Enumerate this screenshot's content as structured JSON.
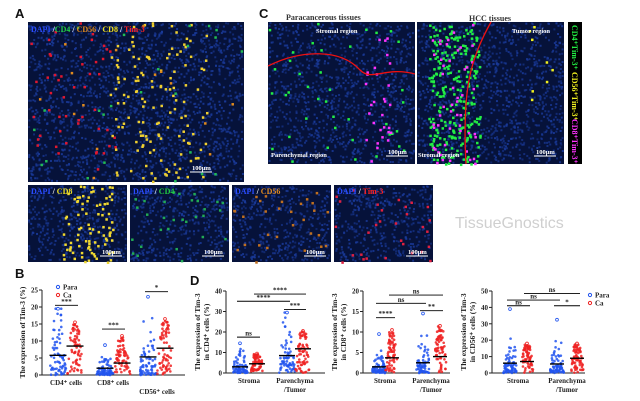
{
  "panels": {
    "A": "A",
    "B": "B",
    "C": "C",
    "D": "D"
  },
  "panel_a": {
    "merge_labels": [
      {
        "text": "DAPI",
        "color": "#2a4cff"
      },
      {
        "text": " /",
        "color": "#ffffff"
      },
      {
        "text": "CD4",
        "color": "#22cc44"
      },
      {
        "text": " / ",
        "color": "#ffffff"
      },
      {
        "text": "CD56",
        "color": "#e08a1e"
      },
      {
        "text": " / ",
        "color": "#ffffff"
      },
      {
        "text": "CD8",
        "color": "#f0e020"
      },
      {
        "text": " / ",
        "color": "#ffffff"
      },
      {
        "text": "Tim-3",
        "color": "#ff2020"
      }
    ],
    "scale_bar": "100μm",
    "singles": [
      {
        "marker": "CD8",
        "color": "#f0e020",
        "dots": "#f0d830",
        "scale": "100μm"
      },
      {
        "marker": "CD4",
        "color": "#22cc44",
        "dots": "#22aa55",
        "scale": "100μm"
      },
      {
        "marker": "CD56",
        "color": "#e08a1e",
        "dots": "#c07020",
        "scale": "100μm"
      },
      {
        "marker": "Tim-3",
        "color": "#ff2020",
        "dots": "#e02040",
        "scale": "100μm"
      }
    ],
    "dapi": "DAPI",
    "sep": " / "
  },
  "panel_c": {
    "left_title": "Paracancerous tissues",
    "right_title": "HCC tissues",
    "left_regions": [
      "Stromal region",
      "Parenchymal region"
    ],
    "right_regions": [
      "Tumor region",
      "Stromal region"
    ],
    "scale": "100μm",
    "legend": [
      {
        "text": "CD4⁺Tim-3⁺",
        "color": "#22ee44"
      },
      {
        "text": "CD56⁺Tim-3⁺",
        "color": "#f0f020"
      },
      {
        "text": "CD8⁺Tim-3⁺",
        "color": "#ff33ff"
      }
    ]
  },
  "legend": {
    "para": "Para",
    "ca": "Ca",
    "para_color": "#2255ee",
    "ca_color": "#ee2222"
  },
  "chart_data": [
    {
      "id": "B",
      "type": "scatter",
      "ylabel": "The expression of Tim-3 (%)",
      "ylim": [
        0,
        25
      ],
      "yticks": [
        0,
        5,
        10,
        15,
        20,
        25
      ],
      "categories": [
        "CD4⁺ cells",
        "CD8⁺ cells",
        "CD56⁺ cells"
      ],
      "series": [
        {
          "name": "Para",
          "means": [
            5.8,
            2.0,
            5.3
          ],
          "max": [
            19.5,
            8.8,
            23
          ]
        },
        {
          "name": "Ca",
          "means": [
            8.5,
            3.5,
            7.9
          ],
          "max": [
            15.5,
            11.5,
            16.5
          ]
        }
      ],
      "significance": [
        {
          "a": 0,
          "b": 1,
          "y": 20.5,
          "label": "***"
        },
        {
          "a": 2,
          "b": 3,
          "y": 13.5,
          "label": "***"
        },
        {
          "a": 4,
          "b": 5,
          "y": 24.5,
          "label": "*"
        }
      ]
    },
    {
      "id": "D1",
      "type": "scatter",
      "ylabel": "The expression of Tim-3",
      "ylabel2": "in CD4⁺ cells (%)",
      "ylim": [
        0,
        40
      ],
      "yticks": [
        0,
        10,
        20,
        30,
        40
      ],
      "categories": [
        "Stroma",
        "Parenchyma",
        "/Tumor"
      ],
      "series": [
        {
          "name": "Para",
          "means": [
            3.0,
            8.5
          ],
          "max": [
            14.5,
            29.5
          ]
        },
        {
          "name": "Ca",
          "means": [
            4.5,
            11.8
          ],
          "max": [
            9.5,
            20.5
          ]
        }
      ],
      "significance": [
        {
          "a": 0,
          "b": 1,
          "y": 17.5,
          "label": "ns"
        },
        {
          "a": 2,
          "b": 3,
          "y": 31,
          "label": "***"
        },
        {
          "a": 0,
          "b": 2,
          "y": 35,
          "label": "****"
        },
        {
          "a": 1,
          "b": 3,
          "y": 38.5,
          "label": "****"
        }
      ]
    },
    {
      "id": "D2",
      "type": "scatter",
      "ylabel": "The expression of Tim-3",
      "ylabel2": "in CD8⁺ cells (%)",
      "ylim": [
        0,
        20
      ],
      "yticks": [
        0,
        5,
        10,
        15,
        20
      ],
      "categories": [
        "Stroma",
        "Parenchyma",
        "/Tumor"
      ],
      "series": [
        {
          "name": "Para",
          "means": [
            1.5,
            2.5
          ],
          "max": [
            9.5,
            14.5
          ]
        },
        {
          "name": "Ca",
          "means": [
            3.7,
            4.0
          ],
          "max": [
            10.5,
            11.5
          ]
        }
      ],
      "significance": [
        {
          "a": 0,
          "b": 1,
          "y": 13.5,
          "label": "****"
        },
        {
          "a": 2,
          "b": 3,
          "y": 15.2,
          "label": "**"
        },
        {
          "a": 0,
          "b": 2,
          "y": 17,
          "label": "ns"
        },
        {
          "a": 1,
          "b": 3,
          "y": 19,
          "label": "ns"
        }
      ]
    },
    {
      "id": "D3",
      "type": "scatter",
      "ylabel": "The expression of Tim-3",
      "ylabel2": "in CD56⁺ cells (%)",
      "ylim": [
        0,
        50
      ],
      "yticks": [
        0,
        10,
        20,
        30,
        40,
        50
      ],
      "categories": [
        "Stroma",
        "Parenchyma",
        "/Tumor"
      ],
      "series": [
        {
          "name": "Para",
          "means": [
            6.0,
            5.5
          ],
          "max": [
            39,
            32.5
          ]
        },
        {
          "name": "Ca",
          "means": [
            7.0,
            9.0
          ],
          "max": [
            18,
            18
          ]
        }
      ],
      "significance": [
        {
          "a": 0,
          "b": 1,
          "y": 41,
          "label": "ns"
        },
        {
          "a": 2,
          "b": 3,
          "y": 41,
          "label": "*"
        },
        {
          "a": 0,
          "b": 2,
          "y": 44.5,
          "label": "ns"
        },
        {
          "a": 1,
          "b": 3,
          "y": 48.5,
          "label": "ns"
        }
      ]
    }
  ],
  "watermark": "TissueGnostics"
}
